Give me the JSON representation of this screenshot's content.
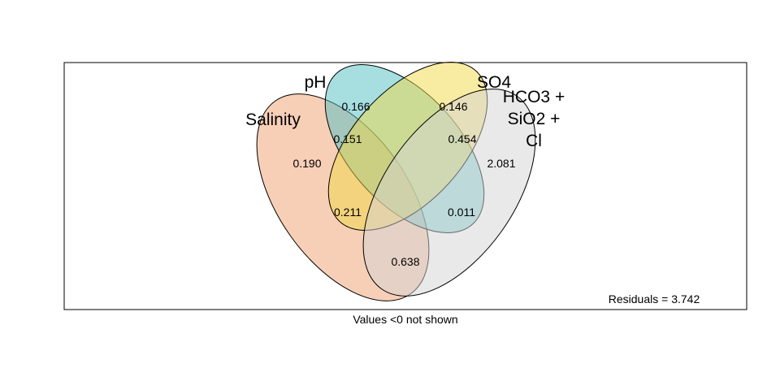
{
  "chart_data": {
    "type": "venn",
    "sets": [
      {
        "name": "Salinity",
        "color": "#F0A070"
      },
      {
        "name": "pH",
        "color": "#50BFC4"
      },
      {
        "name": "SO4",
        "color": "#F2D846"
      },
      {
        "name": "HCO3 + SiO2 + Cl",
        "label_lines": [
          "HCO3 +",
          "SiO2 +",
          "Cl"
        ],
        "color": "#D3D3D3"
      }
    ],
    "regions": [
      {
        "sets": [
          "Salinity"
        ],
        "value": "0.190"
      },
      {
        "sets": [
          "pH"
        ],
        "value": "0.166"
      },
      {
        "sets": [
          "SO4"
        ],
        "value": "0.146"
      },
      {
        "sets": [
          "HCO3 + SiO2 + Cl"
        ],
        "value": "2.081"
      },
      {
        "sets": [
          "Salinity",
          "pH"
        ],
        "value": "0.151"
      },
      {
        "sets": [
          "SO4",
          "HCO3 + SiO2 + Cl"
        ],
        "value": "0.454"
      },
      {
        "sets": [
          "Salinity",
          "SO4"
        ],
        "value": "0.211"
      },
      {
        "sets": [
          "pH",
          "HCO3 + SiO2 + Cl"
        ],
        "value": "0.011"
      },
      {
        "sets": [
          "Salinity",
          "HCO3 + SiO2 + Cl"
        ],
        "value": "0.638"
      }
    ],
    "residuals": "Residuals = 3.742",
    "footnote": "Values <0 not shown"
  }
}
